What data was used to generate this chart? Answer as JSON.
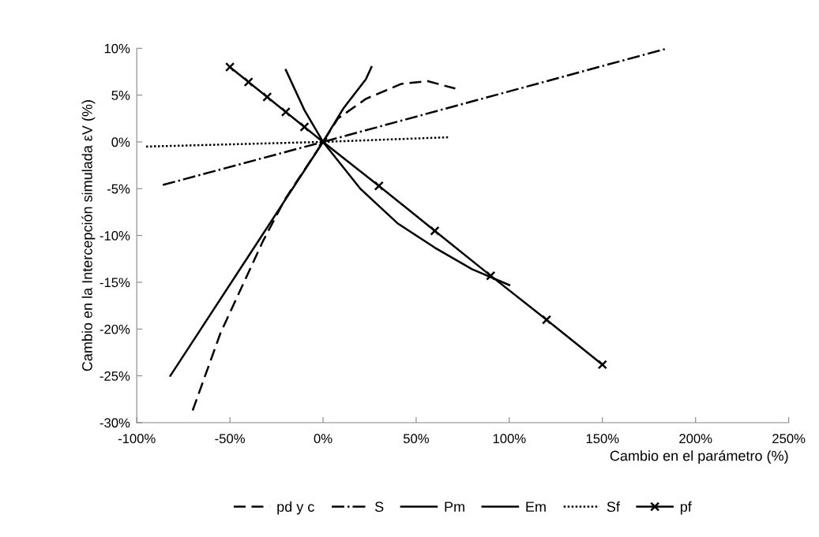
{
  "chart_data": {
    "type": "line",
    "xlabel": "Cambio en el parámetro (%)",
    "ylabel": "Cambio en la Intercepción simulada εV (%)",
    "xlim": [
      -100,
      250
    ],
    "xticks": [
      {
        "value": -100,
        "label": "-100%"
      },
      {
        "value": -50,
        "label": "-50%"
      },
      {
        "value": 0,
        "label": "0%"
      },
      {
        "value": 50,
        "label": "50%"
      },
      {
        "value": 100,
        "label": "100%"
      },
      {
        "value": 150,
        "label": "150%"
      },
      {
        "value": 200,
        "label": "200%"
      },
      {
        "value": 250,
        "label": "250%"
      }
    ],
    "ylim": [
      -30,
      10
    ],
    "yticks": [
      {
        "value": -30,
        "label": "-30%"
      },
      {
        "value": -25,
        "label": "-25%"
      },
      {
        "value": -20,
        "label": "-20%"
      },
      {
        "value": -15,
        "label": "-15%"
      },
      {
        "value": -10,
        "label": "-10%"
      },
      {
        "value": -5,
        "label": "-5%"
      },
      {
        "value": 0,
        "label": "0%"
      },
      {
        "value": 5,
        "label": "5%"
      },
      {
        "value": 10,
        "label": "10%"
      }
    ],
    "grid": false,
    "legend": "bottom",
    "series": [
      {
        "name": "pd y c",
        "color": "#000000",
        "line_style": "dashed",
        "marker": "none",
        "x": [
          -70,
          -55,
          -32,
          -20,
          0,
          8,
          23,
          42,
          56,
          71
        ],
        "values": [
          -28.7,
          -20.4,
          -10.5,
          -6,
          0,
          2.5,
          4.6,
          6.2,
          6.5,
          5.7
        ]
      },
      {
        "name": "S",
        "color": "#000000",
        "line_style": "dashdot",
        "marker": "none",
        "x": [
          -86,
          0,
          185
        ],
        "values": [
          -4.6,
          0,
          10
        ]
      },
      {
        "name": "Pm",
        "color": "#000000",
        "line_style": "solid",
        "marker": "none",
        "x": [
          -20,
          -10,
          0,
          20,
          40,
          60,
          80,
          100
        ],
        "values": [
          7.7,
          3.4,
          0,
          -5,
          -8.7,
          -11.3,
          -13.6,
          -15.3
        ]
      },
      {
        "name": "Em",
        "color": "#000000",
        "line_style": "solid",
        "marker": "none",
        "x": [
          -82,
          -40,
          0,
          11,
          23,
          26
        ],
        "values": [
          -25,
          -12.2,
          0,
          3.6,
          6.7,
          8
        ]
      },
      {
        "name": "Sf",
        "color": "#000000",
        "line_style": "dotted",
        "marker": "none",
        "x": [
          -95,
          0,
          68
        ],
        "values": [
          -0.5,
          0,
          0.5
        ]
      },
      {
        "name": "pf",
        "color": "#000000",
        "line_style": "solid",
        "marker": "cross",
        "x": [
          -50,
          -40,
          -30,
          -20,
          -10,
          0,
          30,
          60,
          90,
          120,
          150
        ],
        "values": [
          8,
          6.4,
          4.8,
          3.2,
          1.6,
          0,
          -4.7,
          -9.5,
          -14.3,
          -19,
          -23.8
        ]
      }
    ]
  }
}
